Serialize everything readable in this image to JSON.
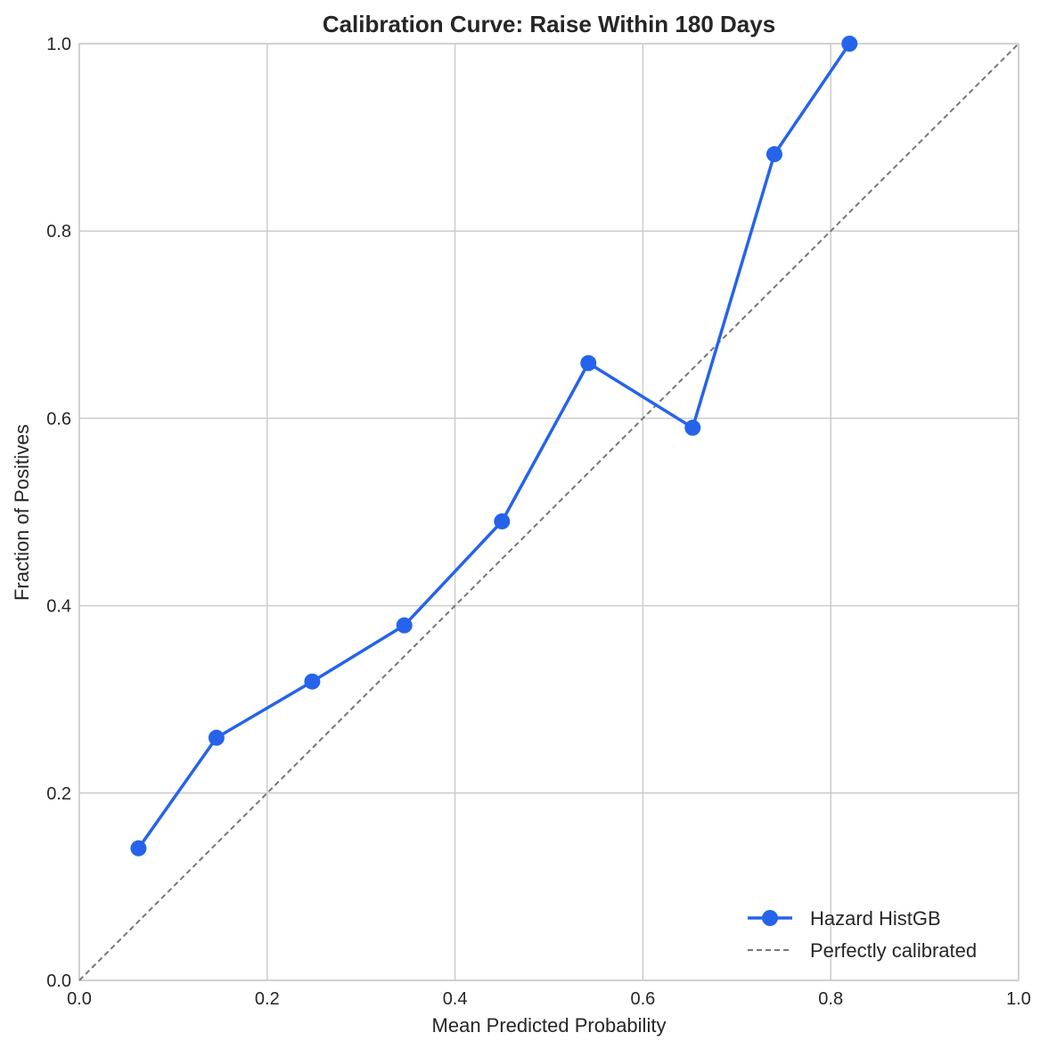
{
  "chart_data": {
    "type": "line",
    "title": "Calibration Curve: Raise Within 180 Days",
    "xlabel": "Mean Predicted Probability",
    "ylabel": "Fraction of Positives",
    "xlim": [
      0,
      1
    ],
    "ylim": [
      0,
      1
    ],
    "x_ticks": [
      "0.0",
      "0.2",
      "0.4",
      "0.6",
      "0.8",
      "1.0"
    ],
    "y_ticks": [
      "0.0",
      "0.2",
      "0.4",
      "0.6",
      "0.8",
      "1.0"
    ],
    "grid": true,
    "legend_position": "bottom-right",
    "series": [
      {
        "name": "Hazard HistGB",
        "color": "#2563eb",
        "style": "solid-with-markers",
        "x": [
          0.063,
          0.146,
          0.248,
          0.346,
          0.45,
          0.542,
          0.653,
          0.74,
          0.82
        ],
        "y": [
          0.141,
          0.259,
          0.319,
          0.379,
          0.49,
          0.659,
          0.59,
          0.882,
          1.0
        ]
      },
      {
        "name": "Perfectly calibrated",
        "color": "#777777",
        "style": "dashed",
        "x": [
          0,
          1
        ],
        "y": [
          0,
          1
        ]
      }
    ]
  }
}
